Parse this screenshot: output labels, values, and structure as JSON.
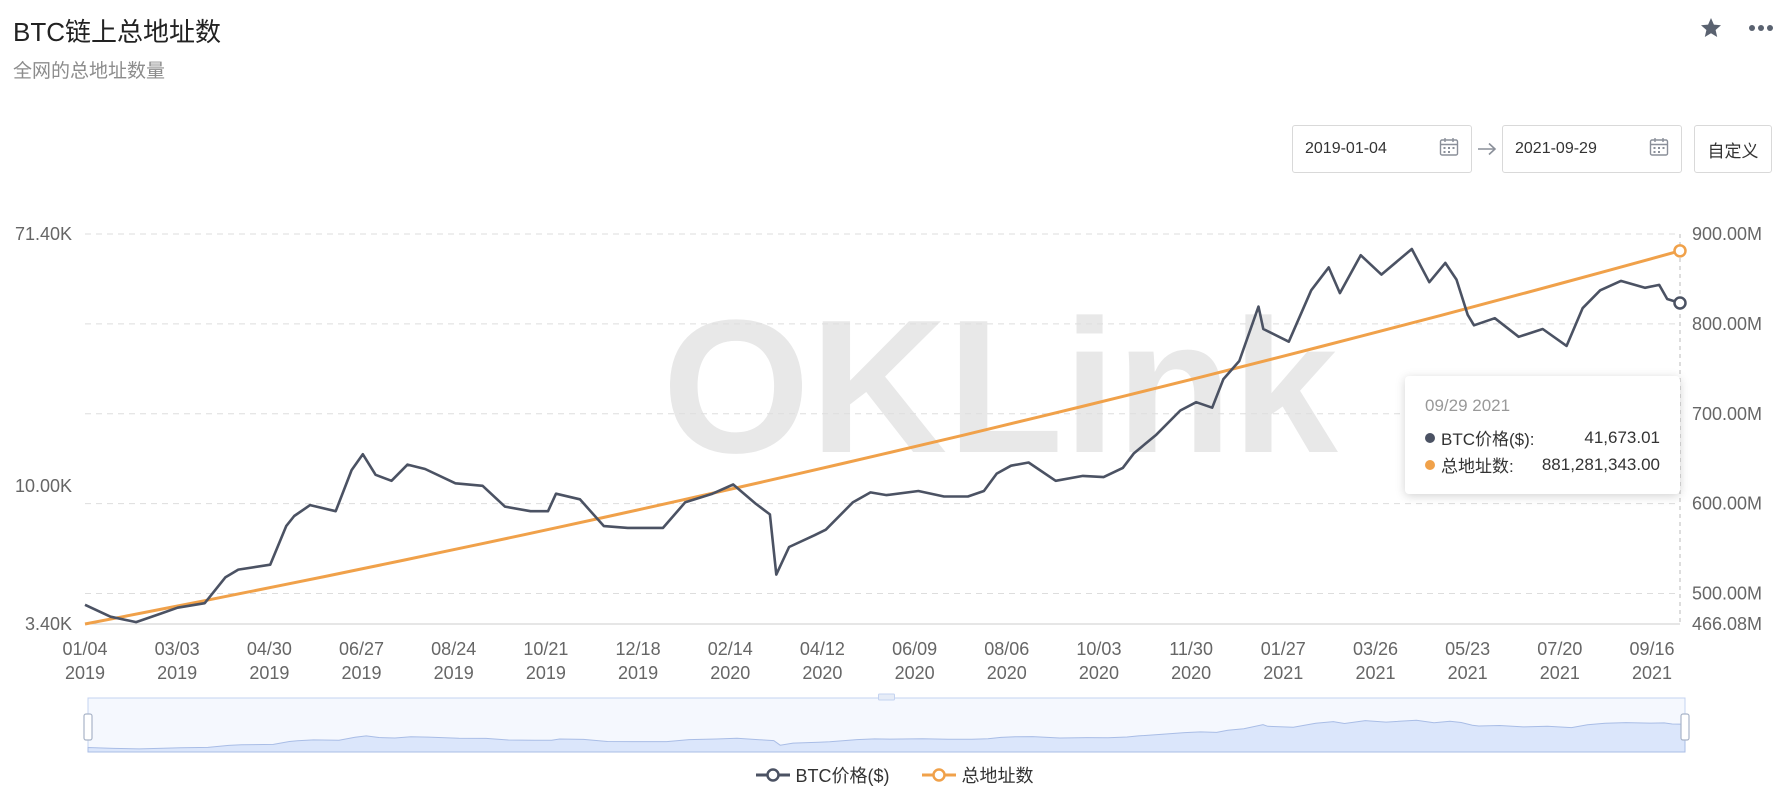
{
  "header": {
    "title": "BTC链上总地址数",
    "subtitle": "全网的总地址数量"
  },
  "icons": {
    "favorite": "star-icon",
    "more": "more-icon",
    "calendar": "calendar-icon",
    "arrow": "arrow-right-icon"
  },
  "range": {
    "start": "2019-01-04",
    "end": "2021-09-29",
    "custom_label": "自定义"
  },
  "watermark": "OKLink",
  "tooltip": {
    "date": "09/29 2021",
    "rows": [
      {
        "label": "BTC价格($):",
        "value": "41,673.01"
      },
      {
        "label": "总地址数:",
        "value": "881,281,343.00"
      }
    ]
  },
  "legend": [
    {
      "name": "BTC价格($)"
    },
    {
      "name": "总地址数"
    }
  ],
  "colors": {
    "btc": "#4b5263",
    "addr": "#f0a14a",
    "grid": "#dddddd",
    "slider_fill": "#dbe6fb",
    "slider_border": "#c4d3f0"
  },
  "chart_data": {
    "type": "line",
    "x_ticks": [
      [
        "01/04",
        "2019"
      ],
      [
        "03/03",
        "2019"
      ],
      [
        "04/30",
        "2019"
      ],
      [
        "06/27",
        "2019"
      ],
      [
        "08/24",
        "2019"
      ],
      [
        "10/21",
        "2019"
      ],
      [
        "12/18",
        "2019"
      ],
      [
        "02/14",
        "2020"
      ],
      [
        "04/12",
        "2020"
      ],
      [
        "06/09",
        "2020"
      ],
      [
        "08/06",
        "2020"
      ],
      [
        "10/03",
        "2020"
      ],
      [
        "11/30",
        "2020"
      ],
      [
        "01/27",
        "2021"
      ],
      [
        "03/26",
        "2021"
      ],
      [
        "05/23",
        "2021"
      ],
      [
        "07/20",
        "2021"
      ],
      [
        "09/16",
        "2021"
      ]
    ],
    "y_left": {
      "scale": "log",
      "ticks": [
        "3.40K",
        "10.00K",
        "71.40K"
      ],
      "range": [
        3400,
        71400
      ]
    },
    "y_right": {
      "ticks": [
        "466.08M",
        "500.00M",
        "600.00M",
        "700.00M",
        "800.00M",
        "900.00M"
      ],
      "range": [
        466.08,
        900
      ]
    },
    "series": [
      {
        "name": "BTC价格($)",
        "axis": "left",
        "x": [
          "2019-01-04",
          "2019-01-20",
          "2019-02-05",
          "2019-02-20",
          "2019-03-03",
          "2019-03-20",
          "2019-04-02",
          "2019-04-10",
          "2019-04-30",
          "2019-05-10",
          "2019-05-15",
          "2019-05-25",
          "2019-06-10",
          "2019-06-20",
          "2019-06-27",
          "2019-07-05",
          "2019-07-15",
          "2019-07-25",
          "2019-08-05",
          "2019-08-24",
          "2019-09-10",
          "2019-09-24",
          "2019-10-10",
          "2019-10-21",
          "2019-10-26",
          "2019-11-10",
          "2019-11-25",
          "2019-12-10",
          "2019-12-18",
          "2020-01-01",
          "2020-01-15",
          "2020-02-01",
          "2020-02-14",
          "2020-02-28",
          "2020-03-08",
          "2020-03-12",
          "2020-03-20",
          "2020-04-05",
          "2020-04-12",
          "2020-04-29",
          "2020-05-10",
          "2020-05-20",
          "2020-06-09",
          "2020-06-25",
          "2020-07-10",
          "2020-07-20",
          "2020-07-28",
          "2020-08-06",
          "2020-08-17",
          "2020-09-03",
          "2020-09-20",
          "2020-10-03",
          "2020-10-15",
          "2020-10-22",
          "2020-11-05",
          "2020-11-20",
          "2020-11-30",
          "2020-12-10",
          "2020-12-17",
          "2020-12-27",
          "2021-01-08",
          "2021-01-11",
          "2021-01-27",
          "2021-02-10",
          "2021-02-21",
          "2021-02-28",
          "2021-03-13",
          "2021-03-26",
          "2021-04-14",
          "2021-04-25",
          "2021-05-05",
          "2021-05-12",
          "2021-05-19",
          "2021-05-23",
          "2021-06-05",
          "2021-06-20",
          "2021-07-05",
          "2021-07-20",
          "2021-07-30",
          "2021-08-10",
          "2021-08-23",
          "2021-09-07",
          "2021-09-16",
          "2021-09-21",
          "2021-09-29"
        ],
        "values": [
          3950,
          3600,
          3450,
          3680,
          3860,
          4000,
          4900,
          5200,
          5400,
          7300,
          7900,
          8600,
          8200,
          11300,
          12800,
          10900,
          10400,
          11800,
          11400,
          10200,
          10000,
          8500,
          8200,
          8200,
          9400,
          9000,
          7300,
          7200,
          7200,
          7200,
          8800,
          9400,
          10100,
          8700,
          8000,
          5000,
          6200,
          6800,
          7100,
          8800,
          9500,
          9300,
          9600,
          9200,
          9200,
          9600,
          11000,
          11700,
          12000,
          10400,
          10800,
          10700,
          11500,
          12900,
          14900,
          18000,
          19200,
          18400,
          23000,
          26500,
          40500,
          34000,
          30800,
          46000,
          55000,
          45000,
          60500,
          52000,
          63500,
          49000,
          57000,
          50000,
          38000,
          35000,
          37000,
          32000,
          34000,
          29800,
          40000,
          46000,
          49500,
          46900,
          48000,
          43000,
          41673
        ]
      },
      {
        "name": "总地址数",
        "axis": "right",
        "x_range": [
          "2019-01-04",
          "2021-09-29"
        ],
        "values_millions": [
          466.08,
          881.28
        ]
      }
    ],
    "grid": true,
    "legend_position": "bottom-center",
    "zoom_slider": true
  }
}
